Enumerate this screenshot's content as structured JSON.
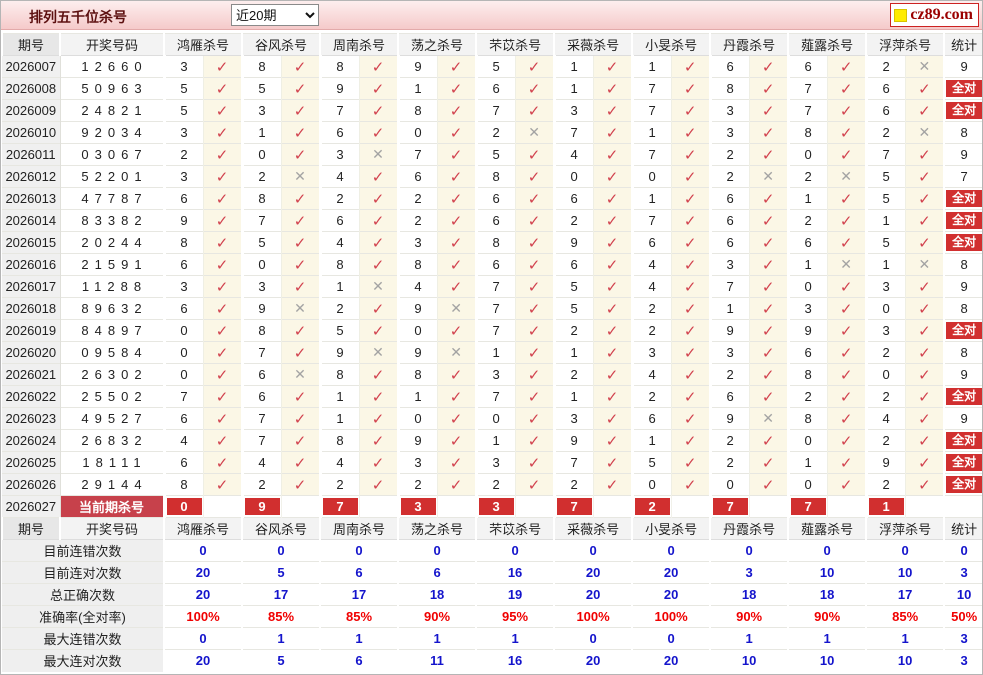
{
  "header": {
    "title": "排列五千位杀号",
    "period_select": {
      "value": "近20期"
    },
    "logo": {
      "text": "cz89.com",
      "icon": "yellow-square-icon"
    }
  },
  "colors": {
    "accent_red": "#d12f2f",
    "check_red": "#d2434f",
    "cross_gray": "#a3a3a3",
    "value_blue": "#1414cc",
    "value_red": "#f00000",
    "bar_pink": "#f5caca",
    "mark_cell_cream": "#fbf7e6"
  },
  "marks": {
    "check": "✓",
    "cross": "✕"
  },
  "table": {
    "col_headers": {
      "period": "期号",
      "numbers": "开奖号码",
      "stat": "统计"
    },
    "experts": [
      "鸿雁杀号",
      "谷风杀号",
      "周南杀号",
      "荡之杀号",
      "芣苡杀号",
      "采薇杀号",
      "小旻杀号",
      "丹霞杀号",
      "薤露杀号",
      "浮萍杀号"
    ],
    "all_correct_label": "全对",
    "rows": [
      {
        "period": "2026007",
        "numbers": "12660",
        "cells": [
          [
            "3",
            1
          ],
          [
            "8",
            1
          ],
          [
            "8",
            1
          ],
          [
            "9",
            1
          ],
          [
            "5",
            1
          ],
          [
            "1",
            1
          ],
          [
            "1",
            1
          ],
          [
            "6",
            1
          ],
          [
            "6",
            1
          ],
          [
            "2",
            0
          ]
        ],
        "stat": "9"
      },
      {
        "period": "2026008",
        "numbers": "50963",
        "cells": [
          [
            "5",
            1
          ],
          [
            "5",
            1
          ],
          [
            "9",
            1
          ],
          [
            "1",
            1
          ],
          [
            "6",
            1
          ],
          [
            "1",
            1
          ],
          [
            "7",
            1
          ],
          [
            "8",
            1
          ],
          [
            "7",
            1
          ],
          [
            "6",
            1
          ]
        ],
        "stat": "全对"
      },
      {
        "period": "2026009",
        "numbers": "24821",
        "cells": [
          [
            "5",
            1
          ],
          [
            "3",
            1
          ],
          [
            "7",
            1
          ],
          [
            "8",
            1
          ],
          [
            "7",
            1
          ],
          [
            "3",
            1
          ],
          [
            "7",
            1
          ],
          [
            "3",
            1
          ],
          [
            "7",
            1
          ],
          [
            "6",
            1
          ]
        ],
        "stat": "全对"
      },
      {
        "period": "2026010",
        "numbers": "92034",
        "cells": [
          [
            "3",
            1
          ],
          [
            "1",
            1
          ],
          [
            "6",
            1
          ],
          [
            "0",
            1
          ],
          [
            "2",
            0
          ],
          [
            "7",
            1
          ],
          [
            "1",
            1
          ],
          [
            "3",
            1
          ],
          [
            "8",
            1
          ],
          [
            "2",
            0
          ]
        ],
        "stat": "8"
      },
      {
        "period": "2026011",
        "numbers": "03067",
        "cells": [
          [
            "2",
            1
          ],
          [
            "0",
            1
          ],
          [
            "3",
            0
          ],
          [
            "7",
            1
          ],
          [
            "5",
            1
          ],
          [
            "4",
            1
          ],
          [
            "7",
            1
          ],
          [
            "2",
            1
          ],
          [
            "0",
            1
          ],
          [
            "7",
            1
          ]
        ],
        "stat": "9"
      },
      {
        "period": "2026012",
        "numbers": "52201",
        "cells": [
          [
            "3",
            1
          ],
          [
            "2",
            0
          ],
          [
            "4",
            1
          ],
          [
            "6",
            1
          ],
          [
            "8",
            1
          ],
          [
            "0",
            1
          ],
          [
            "0",
            1
          ],
          [
            "2",
            0
          ],
          [
            "2",
            0
          ],
          [
            "5",
            1
          ]
        ],
        "stat": "7"
      },
      {
        "period": "2026013",
        "numbers": "47787",
        "cells": [
          [
            "6",
            1
          ],
          [
            "8",
            1
          ],
          [
            "2",
            1
          ],
          [
            "2",
            1
          ],
          [
            "6",
            1
          ],
          [
            "6",
            1
          ],
          [
            "1",
            1
          ],
          [
            "6",
            1
          ],
          [
            "1",
            1
          ],
          [
            "5",
            1
          ]
        ],
        "stat": "全对"
      },
      {
        "period": "2026014",
        "numbers": "83382",
        "cells": [
          [
            "9",
            1
          ],
          [
            "7",
            1
          ],
          [
            "6",
            1
          ],
          [
            "2",
            1
          ],
          [
            "6",
            1
          ],
          [
            "2",
            1
          ],
          [
            "7",
            1
          ],
          [
            "6",
            1
          ],
          [
            "2",
            1
          ],
          [
            "1",
            1
          ]
        ],
        "stat": "全对"
      },
      {
        "period": "2026015",
        "numbers": "20244",
        "cells": [
          [
            "8",
            1
          ],
          [
            "5",
            1
          ],
          [
            "4",
            1
          ],
          [
            "3",
            1
          ],
          [
            "8",
            1
          ],
          [
            "9",
            1
          ],
          [
            "6",
            1
          ],
          [
            "6",
            1
          ],
          [
            "6",
            1
          ],
          [
            "5",
            1
          ]
        ],
        "stat": "全对"
      },
      {
        "period": "2026016",
        "numbers": "21591",
        "cells": [
          [
            "6",
            1
          ],
          [
            "0",
            1
          ],
          [
            "8",
            1
          ],
          [
            "8",
            1
          ],
          [
            "6",
            1
          ],
          [
            "6",
            1
          ],
          [
            "4",
            1
          ],
          [
            "3",
            1
          ],
          [
            "1",
            0
          ],
          [
            "1",
            0
          ]
        ],
        "stat": "8"
      },
      {
        "period": "2026017",
        "numbers": "11288",
        "cells": [
          [
            "3",
            1
          ],
          [
            "3",
            1
          ],
          [
            "1",
            0
          ],
          [
            "4",
            1
          ],
          [
            "7",
            1
          ],
          [
            "5",
            1
          ],
          [
            "4",
            1
          ],
          [
            "7",
            1
          ],
          [
            "0",
            1
          ],
          [
            "3",
            1
          ]
        ],
        "stat": "9"
      },
      {
        "period": "2026018",
        "numbers": "89632",
        "cells": [
          [
            "6",
            1
          ],
          [
            "9",
            0
          ],
          [
            "2",
            1
          ],
          [
            "9",
            0
          ],
          [
            "7",
            1
          ],
          [
            "5",
            1
          ],
          [
            "2",
            1
          ],
          [
            "1",
            1
          ],
          [
            "3",
            1
          ],
          [
            "0",
            1
          ]
        ],
        "stat": "8"
      },
      {
        "period": "2026019",
        "numbers": "84897",
        "cells": [
          [
            "0",
            1
          ],
          [
            "8",
            1
          ],
          [
            "5",
            1
          ],
          [
            "0",
            1
          ],
          [
            "7",
            1
          ],
          [
            "2",
            1
          ],
          [
            "2",
            1
          ],
          [
            "9",
            1
          ],
          [
            "9",
            1
          ],
          [
            "3",
            1
          ]
        ],
        "stat": "全对"
      },
      {
        "period": "2026020",
        "numbers": "09584",
        "cells": [
          [
            "0",
            1
          ],
          [
            "7",
            1
          ],
          [
            "9",
            0
          ],
          [
            "9",
            0
          ],
          [
            "1",
            1
          ],
          [
            "1",
            1
          ],
          [
            "3",
            1
          ],
          [
            "3",
            1
          ],
          [
            "6",
            1
          ],
          [
            "2",
            1
          ]
        ],
        "stat": "8"
      },
      {
        "period": "2026021",
        "numbers": "26302",
        "cells": [
          [
            "0",
            1
          ],
          [
            "6",
            0
          ],
          [
            "8",
            1
          ],
          [
            "8",
            1
          ],
          [
            "3",
            1
          ],
          [
            "2",
            1
          ],
          [
            "4",
            1
          ],
          [
            "2",
            1
          ],
          [
            "8",
            1
          ],
          [
            "0",
            1
          ]
        ],
        "stat": "9"
      },
      {
        "period": "2026022",
        "numbers": "25502",
        "cells": [
          [
            "7",
            1
          ],
          [
            "6",
            1
          ],
          [
            "1",
            1
          ],
          [
            "1",
            1
          ],
          [
            "7",
            1
          ],
          [
            "1",
            1
          ],
          [
            "2",
            1
          ],
          [
            "6",
            1
          ],
          [
            "2",
            1
          ],
          [
            "2",
            1
          ]
        ],
        "stat": "全对"
      },
      {
        "period": "2026023",
        "numbers": "49527",
        "cells": [
          [
            "6",
            1
          ],
          [
            "7",
            1
          ],
          [
            "1",
            1
          ],
          [
            "0",
            1
          ],
          [
            "0",
            1
          ],
          [
            "3",
            1
          ],
          [
            "6",
            1
          ],
          [
            "9",
            0
          ],
          [
            "8",
            1
          ],
          [
            "4",
            1
          ]
        ],
        "stat": "9"
      },
      {
        "period": "2026024",
        "numbers": "26832",
        "cells": [
          [
            "4",
            1
          ],
          [
            "7",
            1
          ],
          [
            "8",
            1
          ],
          [
            "9",
            1
          ],
          [
            "1",
            1
          ],
          [
            "9",
            1
          ],
          [
            "1",
            1
          ],
          [
            "2",
            1
          ],
          [
            "0",
            1
          ],
          [
            "2",
            1
          ]
        ],
        "stat": "全对"
      },
      {
        "period": "2026025",
        "numbers": "18111",
        "cells": [
          [
            "6",
            1
          ],
          [
            "4",
            1
          ],
          [
            "4",
            1
          ],
          [
            "3",
            1
          ],
          [
            "3",
            1
          ],
          [
            "7",
            1
          ],
          [
            "5",
            1
          ],
          [
            "2",
            1
          ],
          [
            "1",
            1
          ],
          [
            "9",
            1
          ]
        ],
        "stat": "全对"
      },
      {
        "period": "2026026",
        "numbers": "29144",
        "cells": [
          [
            "8",
            1
          ],
          [
            "2",
            1
          ],
          [
            "2",
            1
          ],
          [
            "2",
            1
          ],
          [
            "2",
            1
          ],
          [
            "2",
            1
          ],
          [
            "0",
            1
          ],
          [
            "0",
            1
          ],
          [
            "0",
            1
          ],
          [
            "2",
            1
          ]
        ],
        "stat": "全对"
      }
    ],
    "current_row": {
      "period": "2026027",
      "label": "当前期杀号",
      "kills": [
        "0",
        "9",
        "7",
        "3",
        "3",
        "7",
        "2",
        "7",
        "7",
        "1"
      ],
      "stat": ""
    }
  },
  "summary": {
    "rows": [
      {
        "label": "目前连错次数",
        "style": "blue",
        "values": [
          "0",
          "0",
          "0",
          "0",
          "0",
          "0",
          "0",
          "0",
          "0",
          "0"
        ],
        "stat": "0"
      },
      {
        "label": "目前连对次数",
        "style": "blue",
        "values": [
          "20",
          "5",
          "6",
          "6",
          "16",
          "20",
          "20",
          "3",
          "10",
          "10"
        ],
        "stat": "3"
      },
      {
        "label": "总正确次数",
        "style": "blue",
        "values": [
          "20",
          "17",
          "17",
          "18",
          "19",
          "20",
          "20",
          "18",
          "18",
          "17"
        ],
        "stat": "10"
      },
      {
        "label": "准确率(全对率)",
        "style": "red",
        "values": [
          "100%",
          "85%",
          "85%",
          "90%",
          "95%",
          "100%",
          "100%",
          "90%",
          "90%",
          "85%"
        ],
        "stat": "50%"
      },
      {
        "label": "最大连错次数",
        "style": "blue",
        "values": [
          "0",
          "1",
          "1",
          "1",
          "1",
          "0",
          "0",
          "1",
          "1",
          "1"
        ],
        "stat": "3"
      },
      {
        "label": "最大连对次数",
        "style": "blue",
        "values": [
          "20",
          "5",
          "6",
          "11",
          "16",
          "20",
          "20",
          "10",
          "10",
          "10"
        ],
        "stat": "3"
      }
    ]
  }
}
